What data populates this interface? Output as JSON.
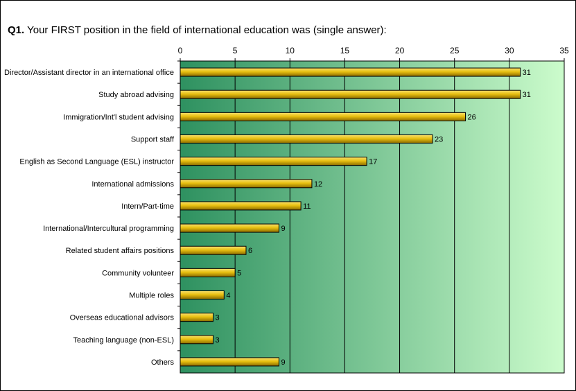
{
  "chart_data": {
    "type": "bar",
    "orientation": "horizontal",
    "title_prefix": "Q1.",
    "title": "Your FIRST position in the field of international education was (single answer):",
    "xlabel": "",
    "ylabel": "",
    "xlim": [
      0,
      35
    ],
    "x_ticks": [
      0,
      5,
      10,
      15,
      20,
      25,
      30,
      35
    ],
    "gridlines": true,
    "legend": "none",
    "categories": [
      "Director/Assistant director in an international office",
      "Study abroad advising",
      "Immigration/Int'l student advising",
      "Support staff",
      "English as Second Language (ESL) instructor",
      "International admissions",
      "Intern/Part-time",
      "International/Intercultural programming",
      "Related student affairs positions",
      "Community volunteer",
      "Multiple roles",
      "Overseas educational advisors",
      "Teaching language (non-ESL)",
      "Others"
    ],
    "values": [
      31,
      31,
      26,
      23,
      17,
      12,
      11,
      9,
      6,
      5,
      4,
      3,
      3,
      9
    ],
    "colors": {
      "bar": "#e8c010",
      "bar_edge": "#000000",
      "background_start": "#2e9160",
      "background_end": "#ccfccc"
    }
  }
}
